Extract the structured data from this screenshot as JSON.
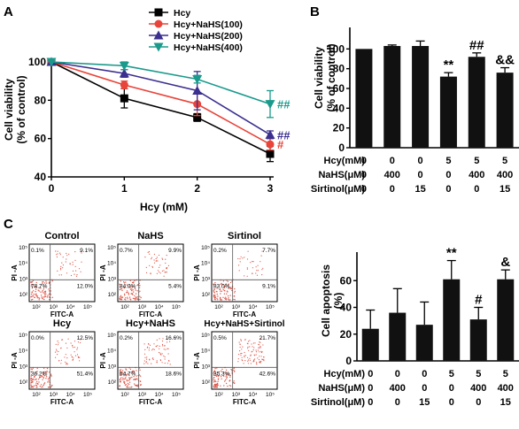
{
  "panel_labels": [
    "A",
    "B",
    "C"
  ],
  "chart_data": [
    {
      "id": "A",
      "type": "line",
      "xlabel": "Hcy (mM)",
      "ylabel": [
        "Cell viability",
        "(% of control)"
      ],
      "x": [
        0,
        1,
        2,
        3
      ],
      "xlim": [
        0,
        3
      ],
      "ylim": [
        40,
        100
      ],
      "yticks": [
        40,
        60,
        80,
        100
      ],
      "xticks": [
        0,
        1,
        2,
        3
      ],
      "series": [
        {
          "name": "Hcy",
          "marker": "square",
          "color": "#000000",
          "values": [
            100,
            81,
            71,
            52
          ],
          "err": [
            0,
            5,
            2,
            4
          ],
          "annotation": ""
        },
        {
          "name": "Hcy+NaHS(100)",
          "marker": "circle",
          "color": "#e8443a",
          "values": [
            100,
            88,
            78,
            57
          ],
          "err": [
            0,
            2,
            6,
            3
          ],
          "annotation": "#"
        },
        {
          "name": "Hcy+NaHS(200)",
          "marker": "triangle-up",
          "color": "#3b2f8f",
          "values": [
            100,
            94,
            85,
            62
          ],
          "err": [
            0,
            2,
            10,
            2
          ],
          "annotation": "##"
        },
        {
          "name": "Hcy+NaHS(400)",
          "marker": "triangle-down",
          "color": "#1a9a8c",
          "values": [
            100,
            98,
            91,
            78
          ],
          "err": [
            0,
            2,
            2,
            7
          ],
          "annotation": "##"
        }
      ]
    },
    {
      "id": "B",
      "type": "bar",
      "ylabel": [
        "Cell viability",
        "(% of control)"
      ],
      "ylim": [
        0,
        120
      ],
      "yticks": [
        0,
        20,
        40,
        60,
        80,
        100
      ],
      "values": [
        100,
        103,
        103,
        72,
        92,
        76
      ],
      "err": [
        0,
        1,
        5,
        4,
        4,
        5
      ],
      "annotations": [
        "",
        "",
        "",
        "**",
        "##",
        "&&"
      ],
      "conditions": [
        {
          "label": "Hcy(mM)",
          "values": [
            "0",
            "0",
            "0",
            "5",
            "5",
            "5"
          ]
        },
        {
          "label": "NaHS(μM)",
          "values": [
            "0",
            "400",
            "0",
            "0",
            "400",
            "400"
          ]
        },
        {
          "label": "Sirtinol(μM)",
          "values": [
            "0",
            "0",
            "15",
            "0",
            "0",
            "15"
          ]
        }
      ]
    },
    {
      "id": "C-bar",
      "type": "bar",
      "ylabel": [
        "Cell apoptosis",
        "(%)"
      ],
      "ylim": [
        0,
        80
      ],
      "yticks": [
        0,
        20,
        40,
        60
      ],
      "values": [
        24,
        36,
        27,
        61,
        31,
        61
      ],
      "err": [
        14,
        18,
        17,
        14,
        9,
        7
      ],
      "annotations": [
        "",
        "",
        "",
        "**",
        "#",
        "&"
      ],
      "conditions": [
        {
          "label": "Hcy(mM)",
          "values": [
            "0",
            "0",
            "0",
            "5",
            "5",
            "5"
          ]
        },
        {
          "label": "NaHS(μM)",
          "values": [
            "0",
            "400",
            "0",
            "0",
            "400",
            "400"
          ]
        },
        {
          "label": "Sirtinol(μM)",
          "values": [
            "0",
            "0",
            "15",
            "0",
            "0",
            "15"
          ]
        }
      ]
    }
  ],
  "flow_plots": {
    "xlabel": "FITC-A",
    "ylabel": "PI -A",
    "xtick_labels": [
      "10²",
      "10³",
      "10⁴",
      "10⁵"
    ],
    "ytick_labels": [
      "10²",
      "10³",
      "10⁴",
      "10⁵"
    ],
    "plots": [
      {
        "title": "Control",
        "q1": "0.1%",
        "q2": "9.1%",
        "q3": "78.7%",
        "q4": "12.0%",
        "upper_right_density": 0.15
      },
      {
        "title": "NaHS",
        "q1": "0.7%",
        "q2": "9.9%",
        "q3": "84.0%",
        "q4": "5.4%",
        "upper_right_density": 0.16
      },
      {
        "title": "Sirtinol",
        "q1": "0.2%",
        "q2": "7.7%",
        "q3": "83.0%",
        "q4": "9.1%",
        "upper_right_density": 0.12
      },
      {
        "title": "Hcy",
        "q1": "0.0%",
        "q2": "12.5%",
        "q3": "36.2%",
        "q4": "51.4%",
        "upper_right_density": 0.2
      },
      {
        "title": "Hcy+NaHS",
        "q1": "0.2%",
        "q2": "16.6%",
        "q3": "64.7%",
        "q4": "18.6%",
        "upper_right_density": 0.25
      },
      {
        "title": "Hcy+NaHS+Sirtinol",
        "q1": "0.5%",
        "q2": "21.7%",
        "q3": "35.3%",
        "q4": "42.6%",
        "upper_right_density": 0.35
      }
    ]
  },
  "colors": {
    "bar": "#111111",
    "flow_dots": "#e0584a",
    "axis": "#000000"
  }
}
